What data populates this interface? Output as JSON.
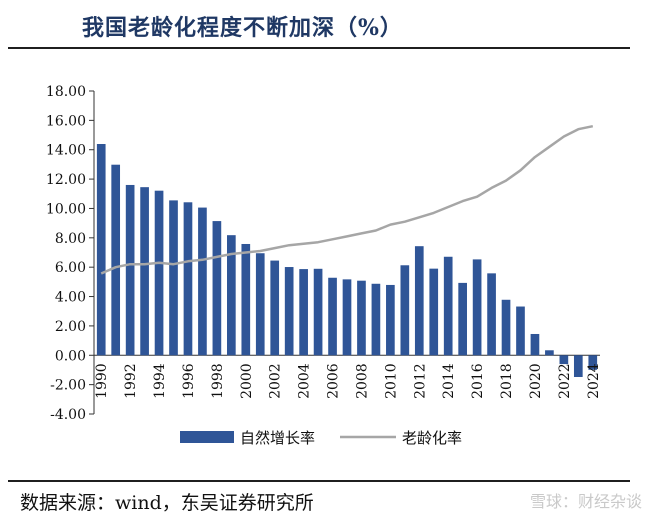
{
  "title": "我国老龄化程度不断加深（%）",
  "source": "数据来源：wind，东吴证券研究所",
  "watermark": "雪球：财经杂谈",
  "colors": {
    "bar": "#2f5597",
    "line": "#a6a6a6",
    "title": "#1f3864"
  },
  "chart_data": {
    "type": "bar+line",
    "title": "我国老龄化程度不断加深（%）",
    "ylim": [
      -4,
      18
    ],
    "yticks": [
      "-4.00",
      "-2.00",
      "0.00",
      "2.00",
      "4.00",
      "6.00",
      "8.00",
      "10.00",
      "12.00",
      "14.00",
      "16.00",
      "18.00"
    ],
    "xtick_labels": [
      "1990",
      "1992",
      "1994",
      "1996",
      "1998",
      "2000",
      "2002",
      "2004",
      "2006",
      "2008",
      "2010",
      "2012",
      "2014",
      "2016",
      "2018",
      "2020",
      "2022",
      "2024"
    ],
    "years": [
      1990,
      1991,
      1992,
      1993,
      1994,
      1995,
      1996,
      1997,
      1998,
      1999,
      2000,
      2001,
      2002,
      2003,
      2004,
      2005,
      2006,
      2007,
      2008,
      2009,
      2010,
      2011,
      2012,
      2013,
      2014,
      2015,
      2016,
      2017,
      2018,
      2019,
      2020,
      2021,
      2022,
      2023,
      2024
    ],
    "legend_position": "bottom",
    "series": [
      {
        "name": "自然增长率",
        "type": "bar",
        "values": [
          14.39,
          12.98,
          11.6,
          11.45,
          11.21,
          10.55,
          10.42,
          10.06,
          9.14,
          8.18,
          7.58,
          6.95,
          6.45,
          6.01,
          5.87,
          5.89,
          5.28,
          5.17,
          5.08,
          4.87,
          4.79,
          6.13,
          7.43,
          5.9,
          6.71,
          4.93,
          6.53,
          5.58,
          3.78,
          3.32,
          1.45,
          0.34,
          -0.6,
          -1.48,
          -0.99
        ]
      },
      {
        "name": "老龄化率",
        "type": "line",
        "values": [
          5.57,
          6.0,
          6.2,
          6.2,
          6.3,
          6.2,
          6.4,
          6.5,
          6.7,
          6.9,
          7.0,
          7.1,
          7.3,
          7.5,
          7.6,
          7.7,
          7.9,
          8.1,
          8.3,
          8.5,
          8.9,
          9.1,
          9.4,
          9.7,
          10.1,
          10.5,
          10.8,
          11.4,
          11.9,
          12.6,
          13.5,
          14.2,
          14.9,
          15.4,
          15.6
        ]
      }
    ]
  }
}
